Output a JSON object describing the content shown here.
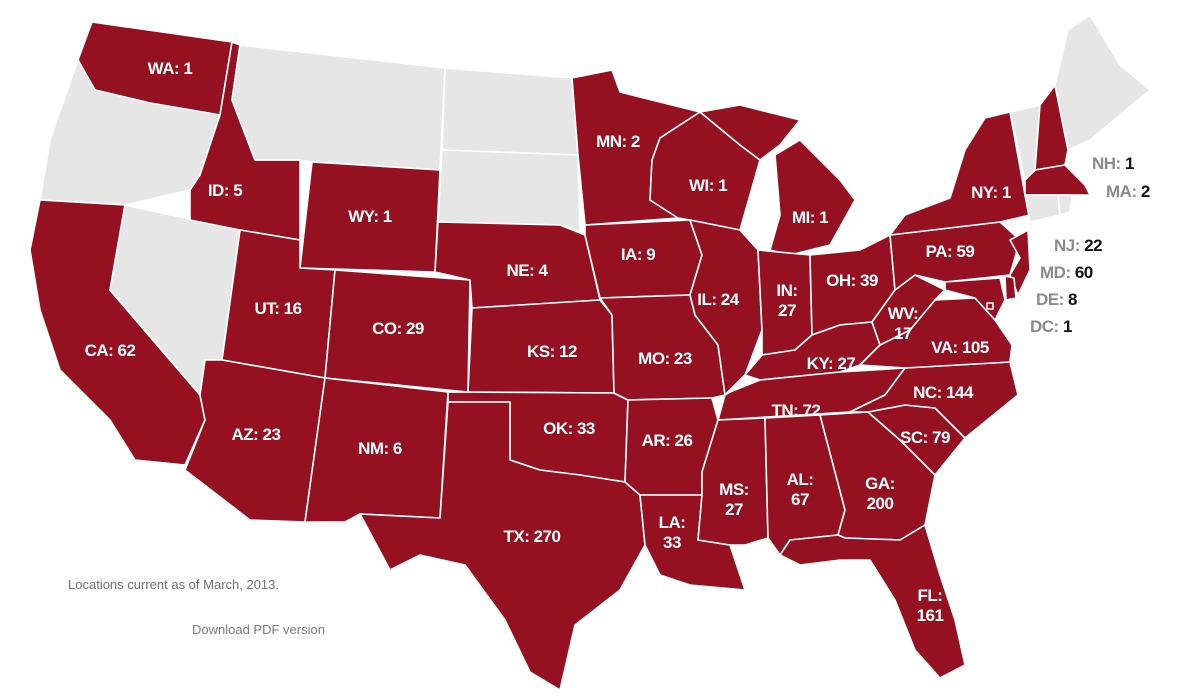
{
  "colors": {
    "has_locations": "#951020",
    "no_locations": "#e6e6e6",
    "border": "#ffffff",
    "label_text": "#ffffff"
  },
  "footnote": "Locations current as of March, 2013.",
  "download_link": "Download PDF version",
  "states": [
    {
      "abbr": "WA",
      "count": 1
    },
    {
      "abbr": "OR",
      "count": null
    },
    {
      "abbr": "CA",
      "count": 62
    },
    {
      "abbr": "NV",
      "count": null
    },
    {
      "abbr": "ID",
      "count": 5
    },
    {
      "abbr": "MT",
      "count": null
    },
    {
      "abbr": "WY",
      "count": 1
    },
    {
      "abbr": "UT",
      "count": 16
    },
    {
      "abbr": "AZ",
      "count": 23
    },
    {
      "abbr": "CO",
      "count": 29
    },
    {
      "abbr": "NM",
      "count": 6
    },
    {
      "abbr": "ND",
      "count": null
    },
    {
      "abbr": "SD",
      "count": null
    },
    {
      "abbr": "NE",
      "count": 4
    },
    {
      "abbr": "KS",
      "count": 12
    },
    {
      "abbr": "OK",
      "count": 33
    },
    {
      "abbr": "TX",
      "count": 270
    },
    {
      "abbr": "MN",
      "count": 2
    },
    {
      "abbr": "IA",
      "count": 9
    },
    {
      "abbr": "MO",
      "count": 23
    },
    {
      "abbr": "AR",
      "count": 26
    },
    {
      "abbr": "LA",
      "count": 33
    },
    {
      "abbr": "WI",
      "count": 1
    },
    {
      "abbr": "IL",
      "count": 24
    },
    {
      "abbr": "MI",
      "count": 1
    },
    {
      "abbr": "IN",
      "count": 27
    },
    {
      "abbr": "OH",
      "count": 39
    },
    {
      "abbr": "KY",
      "count": 27
    },
    {
      "abbr": "TN",
      "count": 72
    },
    {
      "abbr": "MS",
      "count": 27
    },
    {
      "abbr": "AL",
      "count": 67
    },
    {
      "abbr": "GA",
      "count": 200
    },
    {
      "abbr": "FL",
      "count": 161
    },
    {
      "abbr": "SC",
      "count": 79
    },
    {
      "abbr": "NC",
      "count": 144
    },
    {
      "abbr": "VA",
      "count": 105
    },
    {
      "abbr": "WV",
      "count": 17
    },
    {
      "abbr": "PA",
      "count": 59
    },
    {
      "abbr": "NY",
      "count": 1
    },
    {
      "abbr": "VT",
      "count": null
    },
    {
      "abbr": "NH",
      "count": 1
    },
    {
      "abbr": "ME",
      "count": null
    },
    {
      "abbr": "MA",
      "count": 2
    },
    {
      "abbr": "CT",
      "count": null
    },
    {
      "abbr": "RI",
      "count": null
    },
    {
      "abbr": "NJ",
      "count": 22
    },
    {
      "abbr": "DE",
      "count": 8
    },
    {
      "abbr": "MD",
      "count": 60
    },
    {
      "abbr": "DC",
      "count": 1
    }
  ]
}
